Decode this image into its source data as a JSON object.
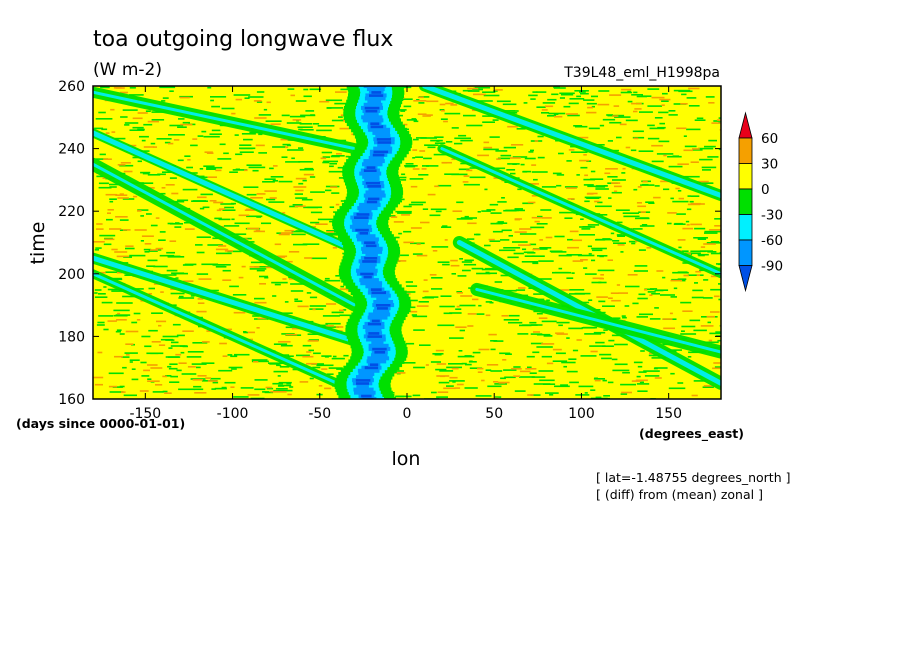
{
  "chart_data": {
    "type": "heatmap",
    "title": "toa outgoing longwave flux",
    "units": "(W m-2)",
    "experiment": "T39L48_eml_H1998pa",
    "xlabel": "lon",
    "ylabel": "time",
    "x_units": "(degrees_east)",
    "y_units": "(days since 0000-01-01)",
    "xlim": [
      -180,
      180
    ],
    "ylim": [
      160,
      260
    ],
    "x_ticks": [
      "-150",
      "-100",
      "-50",
      "0",
      "50",
      "100",
      "150"
    ],
    "x_tick_values": [
      -150,
      -100,
      -50,
      0,
      50,
      100,
      150
    ],
    "y_ticks": [
      "160",
      "180",
      "200",
      "220",
      "240",
      "260"
    ],
    "y_tick_values": [
      160,
      180,
      200,
      220,
      240,
      260
    ],
    "notes": [
      "[ lat=-1.48755 degrees_north ]",
      "[ (diff) from (mean) zonal ]"
    ],
    "colorbar": {
      "levels": [
        "60",
        "30",
        "0",
        "-30",
        "-60",
        "-90"
      ],
      "level_values": [
        60,
        30,
        0,
        -30,
        -60,
        -90
      ],
      "colors": [
        "#e8001a",
        "#f5a000",
        "#ffff00",
        "#00e000",
        "#00f0ff",
        "#0096ff",
        "#0050e6"
      ]
    },
    "field_colors": {
      "above_30": "#f5a000",
      "0_to_30": "#ffff00",
      "-30_to_0": "#00e000",
      "-60_to_-30": "#00f0ff",
      "-90_to_-60": "#0096ff",
      "below_-90": "#0050e6"
    },
    "features": {
      "convective_center_lon": -20,
      "westward_bands": [
        {
          "lon_start": -20,
          "time_start": 160,
          "lon_end": -180,
          "time_end": 200
        },
        {
          "lon_start": -10,
          "time_start": 175,
          "lon_end": -180,
          "time_end": 205
        },
        {
          "lon_start": -30,
          "time_start": 190,
          "lon_end": -180,
          "time_end": 235
        },
        {
          "lon_start": -20,
          "time_start": 205,
          "lon_end": -180,
          "time_end": 245
        },
        {
          "lon_start": -30,
          "time_start": 240,
          "lon_end": -180,
          "time_end": 258
        },
        {
          "lon_start": 180,
          "time_start": 165,
          "lon_end": 30,
          "time_end": 210
        },
        {
          "lon_start": 180,
          "time_start": 200,
          "lon_end": 20,
          "time_end": 240
        },
        {
          "lon_start": 180,
          "time_start": 225,
          "lon_end": 10,
          "time_end": 260
        },
        {
          "lon_start": 180,
          "time_start": 175,
          "lon_end": 40,
          "time_end": 195
        }
      ]
    }
  }
}
